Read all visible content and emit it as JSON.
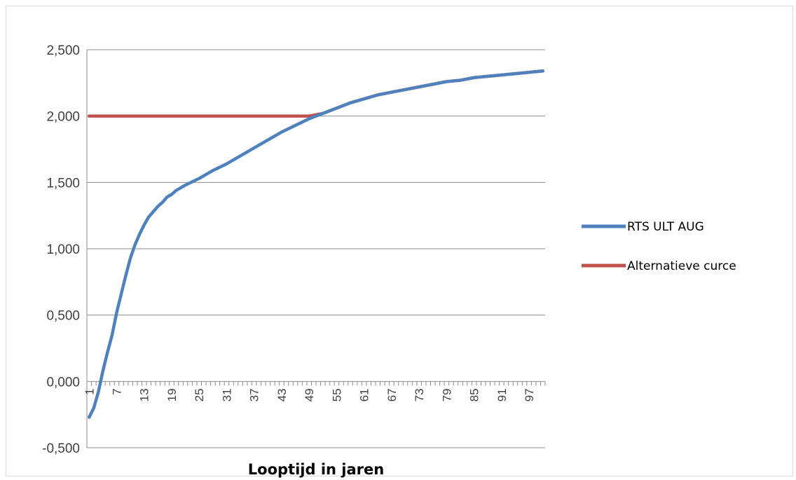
{
  "chart_data": {
    "type": "line",
    "title": "",
    "xlabel": "Looptijd in jaren",
    "ylabel": "",
    "ylim": [
      -0.5,
      2.5
    ],
    "yticks": [
      -0.5,
      0,
      0.5,
      1.0,
      1.5,
      2.0,
      2.5
    ],
    "ytick_labels": [
      "-0,500",
      "0,000",
      "0,500",
      "1,000",
      "1,500",
      "2,000",
      "2,500"
    ],
    "x_categories": {
      "start": 1,
      "end": 100
    },
    "xtick_labels": [
      "1",
      "7",
      "13",
      "19",
      "25",
      "31",
      "37",
      "43",
      "49",
      "55",
      "61",
      "67",
      "73",
      "79",
      "85",
      "91",
      "97"
    ],
    "grid": "horizontal",
    "legend_position": "right",
    "series": [
      {
        "name": "RTS ULT AUG",
        "color": "#4F81BD",
        "points": [
          [
            1,
            -0.27
          ],
          [
            2,
            -0.2
          ],
          [
            3,
            -0.08
          ],
          [
            4,
            0.08
          ],
          [
            5,
            0.22
          ],
          [
            6,
            0.35
          ],
          [
            7,
            0.52
          ],
          [
            8,
            0.66
          ],
          [
            9,
            0.8
          ],
          [
            10,
            0.93
          ],
          [
            11,
            1.03
          ],
          [
            12,
            1.11
          ],
          [
            13,
            1.18
          ],
          [
            14,
            1.24
          ],
          [
            15,
            1.28
          ],
          [
            16,
            1.32
          ],
          [
            17,
            1.35
          ],
          [
            18,
            1.39
          ],
          [
            19,
            1.41
          ],
          [
            20,
            1.44
          ],
          [
            22,
            1.48
          ],
          [
            25,
            1.53
          ],
          [
            28,
            1.59
          ],
          [
            31,
            1.64
          ],
          [
            34,
            1.7
          ],
          [
            37,
            1.76
          ],
          [
            40,
            1.82
          ],
          [
            43,
            1.88
          ],
          [
            46,
            1.93
          ],
          [
            49,
            1.98
          ],
          [
            52,
            2.02
          ],
          [
            55,
            2.06
          ],
          [
            58,
            2.1
          ],
          [
            61,
            2.13
          ],
          [
            64,
            2.16
          ],
          [
            67,
            2.18
          ],
          [
            70,
            2.2
          ],
          [
            73,
            2.22
          ],
          [
            76,
            2.24
          ],
          [
            79,
            2.26
          ],
          [
            82,
            2.27
          ],
          [
            85,
            2.29
          ],
          [
            88,
            2.3
          ],
          [
            91,
            2.31
          ],
          [
            94,
            2.32
          ],
          [
            97,
            2.33
          ],
          [
            100,
            2.34
          ]
        ]
      },
      {
        "name": "Alternatieve curce",
        "color": "#C0504D",
        "points": [
          [
            1,
            2.0
          ],
          [
            49,
            2.0
          ],
          [
            52,
            2.02
          ],
          [
            55,
            2.06
          ],
          [
            58,
            2.1
          ],
          [
            61,
            2.13
          ],
          [
            64,
            2.16
          ],
          [
            67,
            2.18
          ],
          [
            70,
            2.2
          ],
          [
            73,
            2.22
          ],
          [
            76,
            2.24
          ],
          [
            79,
            2.26
          ],
          [
            82,
            2.27
          ],
          [
            85,
            2.29
          ],
          [
            88,
            2.3
          ],
          [
            91,
            2.31
          ],
          [
            94,
            2.32
          ],
          [
            97,
            2.33
          ],
          [
            100,
            2.34
          ]
        ]
      }
    ]
  }
}
